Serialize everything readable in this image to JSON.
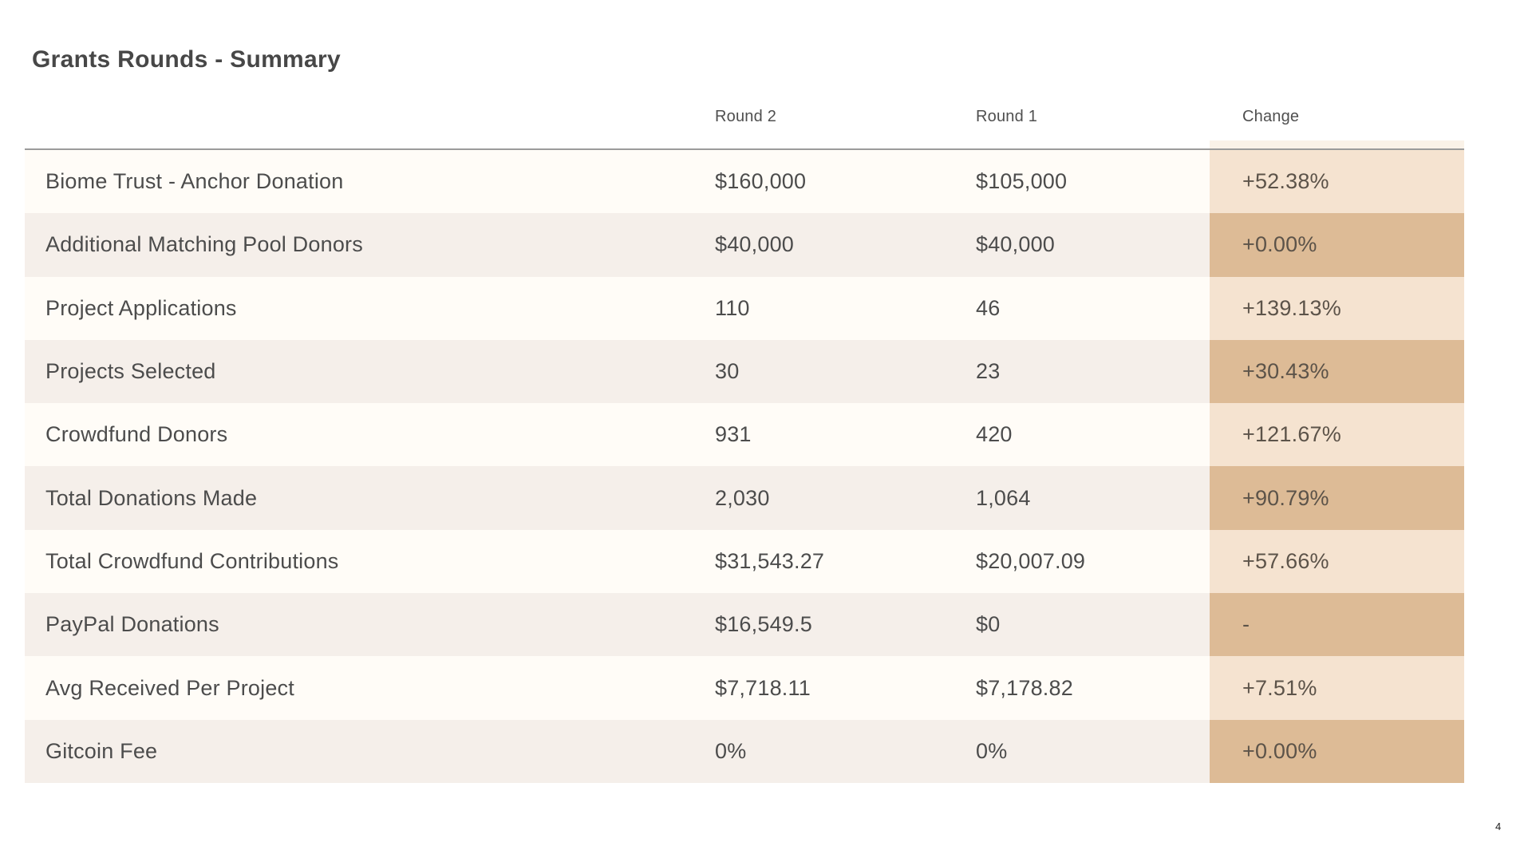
{
  "slide": {
    "title": "Grants Rounds - Summary",
    "page_number": "4"
  },
  "table": {
    "headers": {
      "round2": "Round 2",
      "round1": "Round 1",
      "change": "Change"
    },
    "rows": [
      {
        "label": "Biome Trust - Anchor Donation",
        "round2": "$160,000",
        "round1": "$105,000",
        "change": "+52.38%"
      },
      {
        "label": "Additional Matching Pool Donors",
        "round2": "$40,000",
        "round1": "$40,000",
        "change": "+0.00%"
      },
      {
        "label": "Project Applications",
        "round2": "110",
        "round1": "46",
        "change": "+139.13%"
      },
      {
        "label": "Projects Selected",
        "round2": "30",
        "round1": "23",
        "change": "+30.43%"
      },
      {
        "label": "Crowdfund Donors",
        "round2": "931",
        "round1": "420",
        "change": "+121.67%"
      },
      {
        "label": "Total Donations Made",
        "round2": "2,030",
        "round1": "1,064",
        "change": "+90.79%"
      },
      {
        "label": "Total Crowdfund Contributions",
        "round2": "$31,543.27",
        "round1": "$20,007.09",
        "change": "+57.66%"
      },
      {
        "label": "PayPal Donations",
        "round2": "$16,549.5",
        "round1": "$0",
        "change": "-"
      },
      {
        "label": "Avg Received Per Project",
        "round2": "$7,718.11",
        "round1": "$7,178.82",
        "change": "+7.51%"
      },
      {
        "label": "Gitcoin Fee",
        "round2": "0%",
        "round1": "0%",
        "change": "+0.00%"
      }
    ]
  },
  "colors": {
    "row_odd_bg": "#FFFCF7",
    "row_even_bg": "#F5EFEA",
    "change_odd_bg": "#F5E3D0",
    "change_even_bg": "#DDBB96",
    "header_rule": "#9B9B9B",
    "title_text": "#474747",
    "header_text": "#4F4F4F",
    "body_text": "#4C4C4C",
    "change_text": "#5C5349",
    "change_header_tint": "#FAF2E8"
  }
}
